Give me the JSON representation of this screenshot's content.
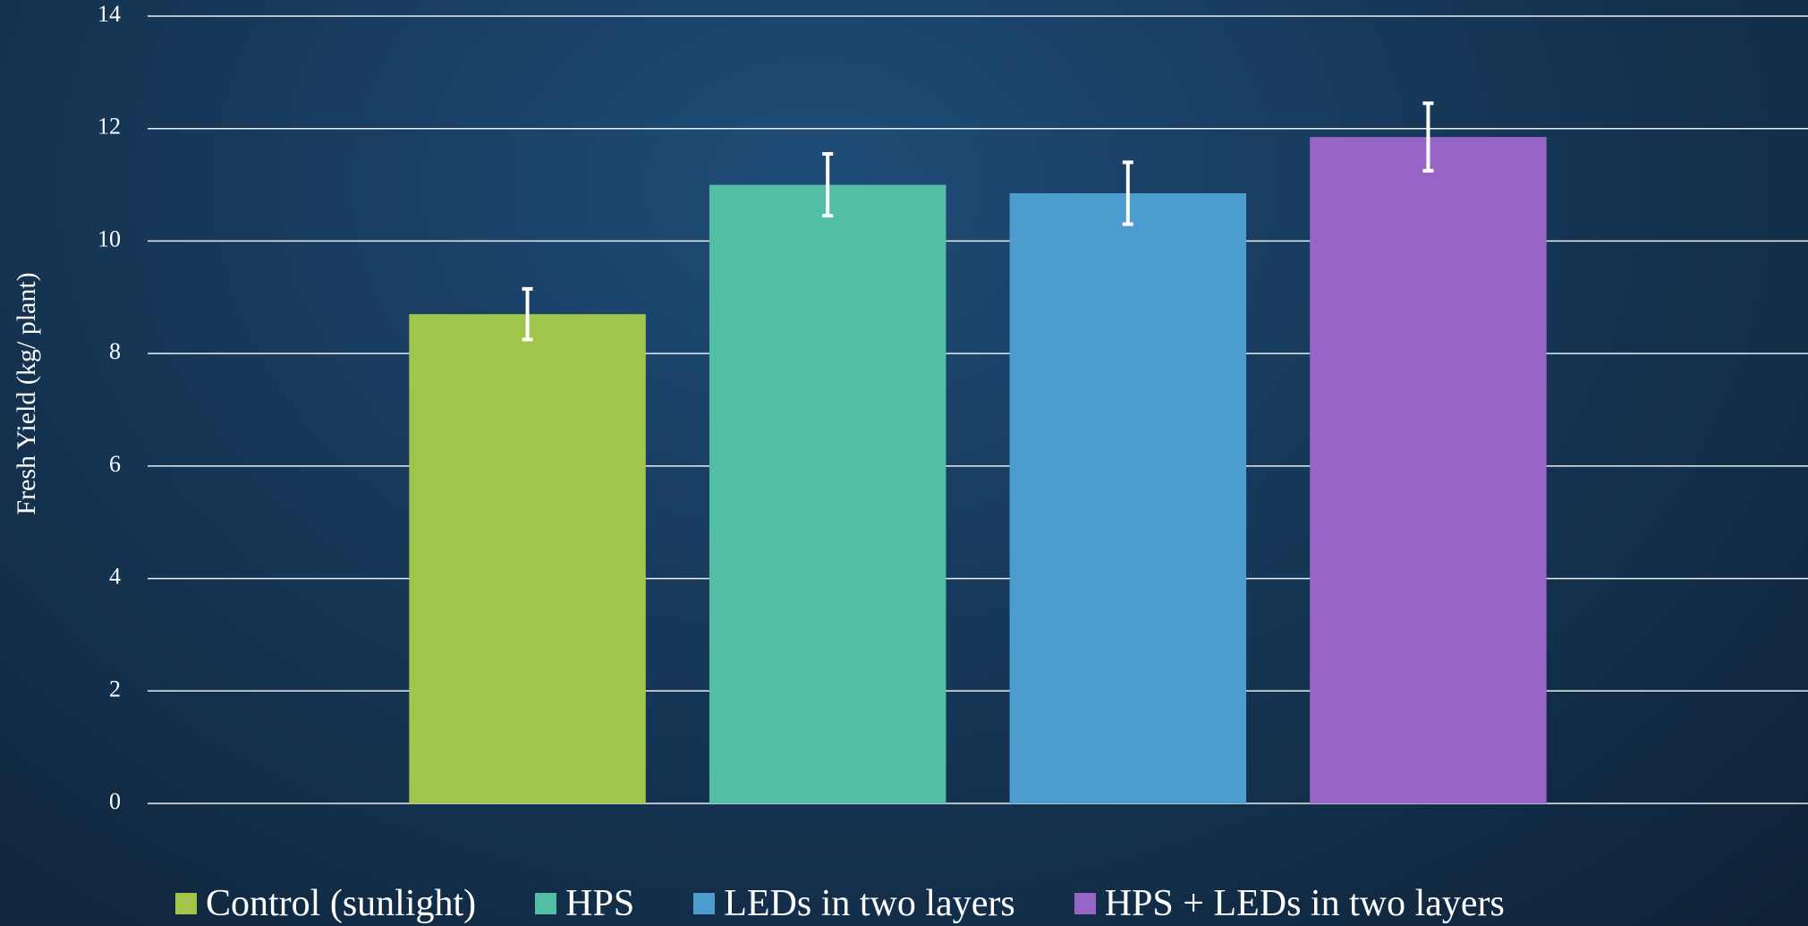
{
  "chart_data": {
    "type": "bar",
    "y_label": "Fresh Yield (kg/ plant)",
    "categories": [
      null
    ],
    "series": [
      {
        "name": "Control (sunlight)",
        "color": "#a1c54a",
        "values": [
          8.7
        ],
        "errors": [
          0.45
        ]
      },
      {
        "name": "HPS",
        "color": "#52bfa5",
        "values": [
          11.0
        ],
        "errors": [
          0.55
        ]
      },
      {
        "name": "LEDs in two layers",
        "color": "#4c9ccf",
        "values": [
          10.85
        ],
        "errors": [
          0.55
        ]
      },
      {
        "name": "HPS + LEDs in two layers",
        "color": "#9665c6",
        "values": [
          11.85
        ],
        "errors": [
          0.6
        ]
      }
    ],
    "ylim": [
      0,
      14
    ],
    "yticks": [
      0,
      2,
      4,
      6,
      8,
      10,
      12,
      14
    ],
    "grid": true,
    "legend": "bottom"
  }
}
